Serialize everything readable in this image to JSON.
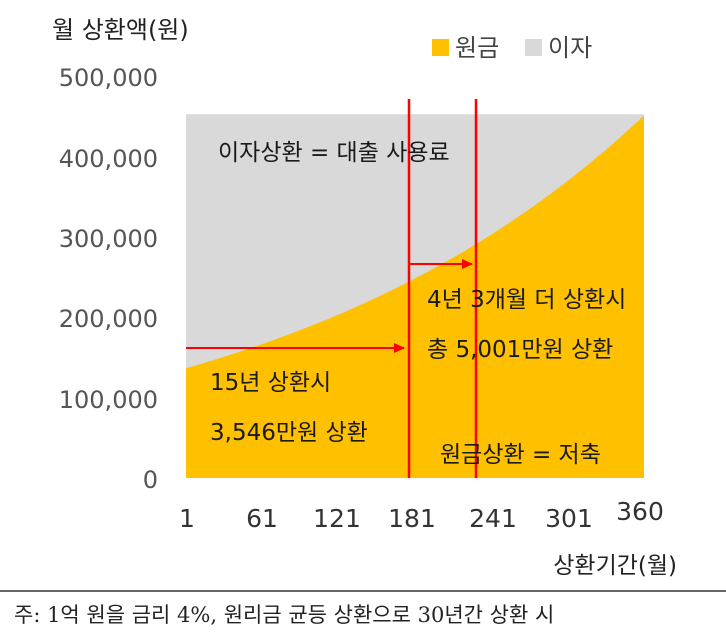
{
  "chart_data": {
    "type": "area",
    "stacked": true,
    "ylabel": "월 상환액(원)",
    "xlabel": "상환기간(월)",
    "ylim": [
      0,
      500000
    ],
    "yticks": [
      "500,000",
      "400,000",
      "300,000",
      "200,000",
      "100,000",
      "0"
    ],
    "ytick_values": [
      500000,
      400000,
      300000,
      200000,
      100000,
      0
    ],
    "xticks": [
      "1",
      "61",
      "121",
      "181",
      "241",
      "301",
      "360"
    ],
    "xtick_values": [
      1,
      61,
      121,
      181,
      241,
      301,
      360
    ],
    "xlim": [
      1,
      360
    ],
    "total_payment": 477415,
    "annual_rate": 0.04,
    "series": [
      {
        "name": "원금",
        "color": "#FFC000"
      },
      {
        "name": "이자",
        "color": "#D9D9D9"
      }
    ],
    "vlines": [
      {
        "x": 181
      },
      {
        "x": 232
      }
    ],
    "vline_color": "#FF0000",
    "annotations": {
      "interest_region": "이자상환 = 대출 사용료",
      "principal_region": "원금상환 = 저축",
      "fifteen_line1": "15년 상환시",
      "fifteen_line2": "3,546만원 상환",
      "extra_line1": "4년 3개월 더 상환시",
      "extra_line2": "총 5,001만원 상환"
    }
  },
  "footnote": "주: 1억 원을 금리 4%, 원리금 균등 상환으로 30년간 상환 시"
}
